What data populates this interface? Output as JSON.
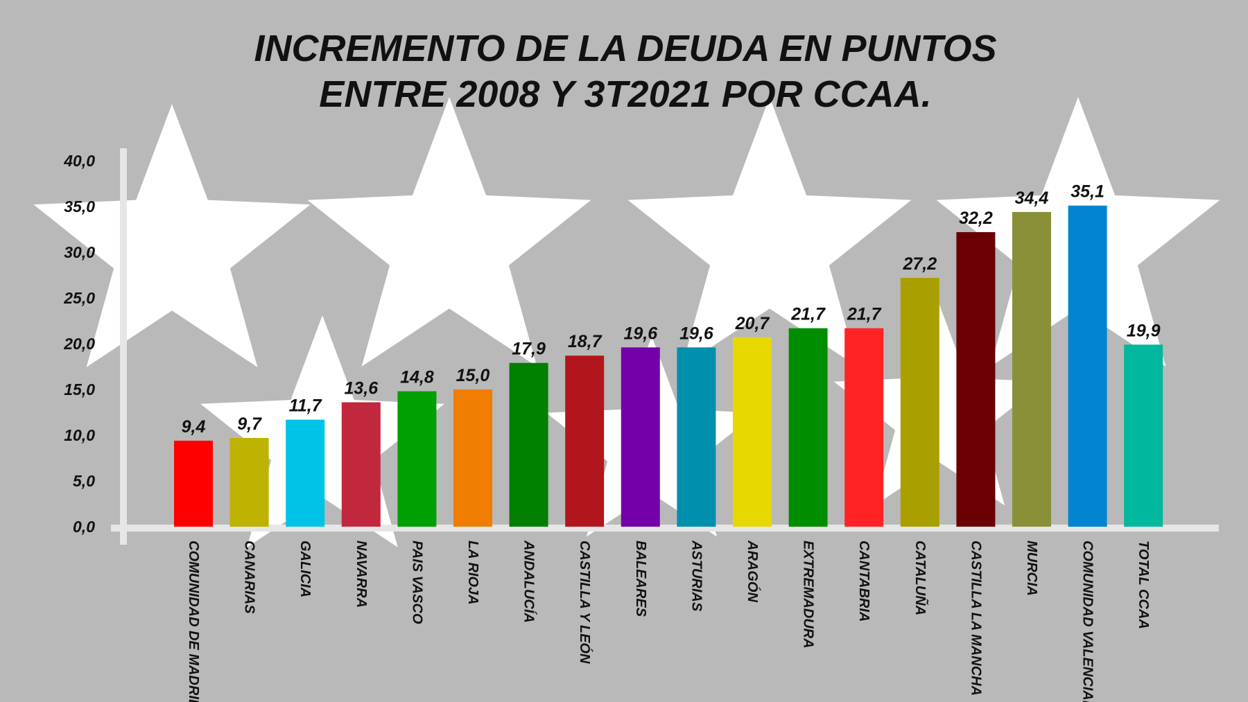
{
  "colors": {
    "background": "#b9b9b9",
    "stars": "#ffffff",
    "axis": "#e6e6e6",
    "text": "#111111"
  },
  "chart_data": {
    "type": "bar",
    "title_lines": [
      "INCREMENTO DE LA DEUDA EN PUNTOS",
      "ENTRE 2008 Y 3T2021 POR CCAA."
    ],
    "categories": [
      "COMUNIDAD DE MADRID",
      "CANARIAS",
      "GALICIA",
      "NAVARRA",
      "PAIS VASCO",
      "LA RIOJA",
      "ANDALUCÍA",
      "CASTILLA Y LEÓN",
      "BALEARES",
      "ASTURIAS",
      "ARAGÓN",
      "EXTREMADURA",
      "CANTABRIA",
      "CATALUÑA",
      "CASTILLA LA MANCHA",
      "MURCIA",
      "COMUNIDAD VALENCIANA",
      "TOTAL CCAA"
    ],
    "values": [
      9.4,
      9.7,
      11.7,
      13.6,
      14.8,
      15.0,
      17.9,
      18.7,
      19.6,
      19.6,
      20.7,
      21.7,
      21.7,
      27.2,
      32.2,
      34.4,
      35.1,
      19.9
    ],
    "value_labels": [
      "9,4",
      "9,7",
      "11,7",
      "13,6",
      "14,8",
      "15,0",
      "17,9",
      "18,7",
      "19,6",
      "19,6",
      "20,7",
      "21,7",
      "21,7",
      "27,2",
      "32,2",
      "34,4",
      "35,1",
      "19,9"
    ],
    "bar_colors": [
      "#fe0000",
      "#bdb300",
      "#00c3e8",
      "#c1283d",
      "#00a002",
      "#f07c00",
      "#007f01",
      "#b2161c",
      "#7400a8",
      "#0090ae",
      "#e6d800",
      "#008e00",
      "#ff2224",
      "#a9a000",
      "#6a0004",
      "#8a9038",
      "#0185d0",
      "#00b89e"
    ],
    "ylim": [
      0,
      40
    ],
    "yticks": [
      0,
      5,
      10,
      15,
      20,
      25,
      30,
      35,
      40
    ],
    "ytick_labels": [
      "0,0",
      "5,0",
      "10,0",
      "15,0",
      "20,0",
      "25,0",
      "30,0",
      "35,0",
      "40,0"
    ],
    "xlabel": "",
    "ylabel": "",
    "grid": false,
    "legend": "none"
  }
}
